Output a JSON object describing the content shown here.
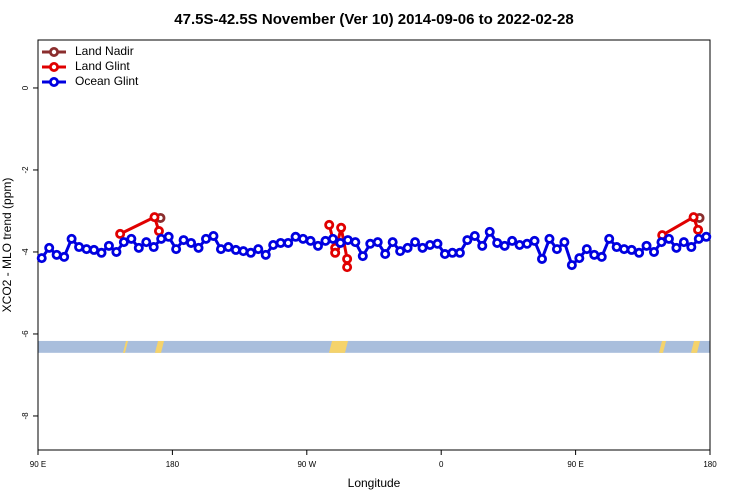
{
  "chart_data": {
    "type": "line",
    "title": "47.5S-42.5S November (Ver 10)   2014-09-06 to 2022-02-28",
    "xlabel": "Longitude",
    "ylabel": "XCO2 - MLO trend (ppm)",
    "xlim": [
      90,
      540
    ],
    "ylim": [
      -8.83,
      1.17
    ],
    "xticks": [
      {
        "value": 90,
        "label": "90 E"
      },
      {
        "value": 180,
        "label": "180"
      },
      {
        "value": 270,
        "label": "90 W"
      },
      {
        "value": 360,
        "label": "0"
      },
      {
        "value": 450,
        "label": "90 E"
      },
      {
        "value": 540,
        "label": "180"
      }
    ],
    "yticks": [
      0,
      -2,
      -4,
      -6,
      -8
    ],
    "legend": "top-left",
    "band": {
      "ylim": [
        -6.46,
        -6.17
      ],
      "color": "#a9bedc"
    },
    "series": [
      {
        "name": "Land Nadir",
        "color": "#8b2e2e",
        "x": [
          172,
          350,
          533
        ],
        "values": [
          -3.17,
          null,
          -3.17
        ]
      },
      {
        "name": "Land Glint",
        "color": "#e00000",
        "x": [
          145,
          168,
          171,
          230,
          285,
          289,
          289,
          293,
          297,
          297,
          400,
          508,
          529,
          532
        ],
        "values": [
          -3.56,
          -3.15,
          -3.49,
          null,
          -3.34,
          -3.9,
          -4.02,
          -3.41,
          -4.17,
          -4.37,
          null,
          -3.59,
          -3.15,
          -3.46
        ]
      },
      {
        "name": "Ocean Glint",
        "color": "#0000e0",
        "x": [
          92.5,
          97.5,
          102.5,
          107.5,
          112.5,
          117.5,
          122.5,
          127.5,
          132.5,
          137.5,
          142.5,
          147.5,
          152.5,
          157.5,
          162.5,
          167.5,
          172.5,
          177.5,
          182.5,
          187.5,
          192.5,
          197.5,
          202.5,
          207.5,
          212.5,
          217.5,
          222.5,
          227.5,
          232.5,
          237.5,
          242.5,
          247.5,
          252.5,
          257.5,
          262.5,
          267.5,
          272.5,
          277.5,
          282.5,
          287.5,
          292.5,
          297.5,
          302.5,
          307.5,
          312.5,
          317.5,
          322.5,
          327.5,
          332.5,
          337.5,
          342.5,
          347.5,
          352.5,
          357.5,
          362.5,
          367.5,
          372.5,
          377.5,
          382.5,
          387.5,
          392.5,
          397.5,
          402.5,
          407.5,
          412.5,
          417.5,
          422.5,
          427.5,
          432.5,
          437.5,
          442.5,
          447.5,
          452.5,
          457.5,
          462.5,
          467.5,
          472.5,
          477.5,
          482.5,
          487.5,
          492.5,
          497.5,
          502.5,
          507.5,
          512.5,
          517.5,
          522.5,
          527.5,
          532.5,
          537.5
        ],
        "values": [
          -4.15,
          -3.9,
          -4.07,
          -4.12,
          -3.68,
          -3.88,
          -3.93,
          -3.95,
          -4.02,
          -3.85,
          -4.0,
          -3.76,
          -3.68,
          -3.9,
          -3.76,
          -3.88,
          -3.68,
          -3.63,
          -3.93,
          -3.71,
          -3.78,
          -3.9,
          -3.68,
          -3.61,
          -3.93,
          -3.88,
          -3.95,
          -3.98,
          -4.02,
          -3.93,
          -4.07,
          -3.83,
          -3.78,
          -3.78,
          -3.63,
          -3.68,
          -3.73,
          -3.85,
          -3.73,
          -3.68,
          -3.78,
          -3.71,
          -3.76,
          -4.1,
          -3.8,
          -3.76,
          -4.05,
          -3.76,
          -3.98,
          -3.9,
          -3.76,
          -3.9,
          -3.83,
          -3.8,
          -4.05,
          -4.02,
          -4.02,
          -3.71,
          -3.61,
          -3.85,
          -3.51,
          -3.78,
          -3.85,
          -3.73,
          -3.83,
          -3.8,
          -3.73,
          -4.17,
          -3.68,
          -3.93,
          -3.76,
          -4.32,
          -4.15,
          -3.93,
          -4.07,
          -4.12,
          -3.68,
          -3.88,
          -3.93,
          -3.95,
          -4.02,
          -3.85,
          -4.0,
          -3.76,
          -3.68,
          -3.9,
          -3.76,
          -3.88,
          -3.68,
          -3.63
        ]
      }
    ]
  }
}
